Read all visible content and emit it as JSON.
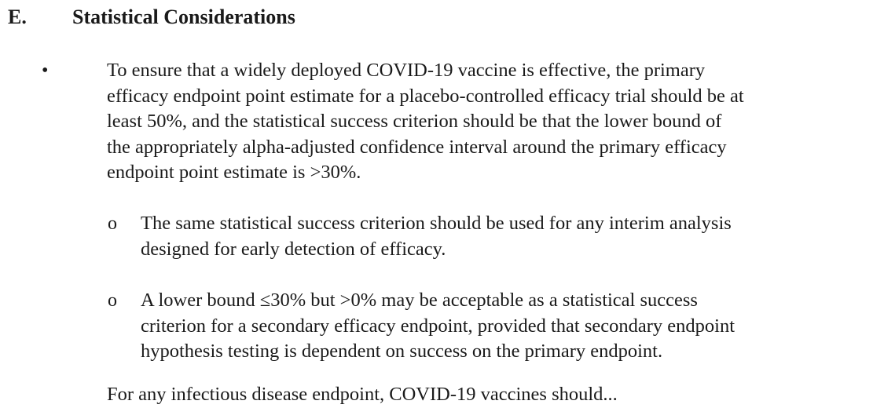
{
  "section": {
    "letter": "E.",
    "title": "Statistical Considerations"
  },
  "bullets": [
    {
      "marker": "•",
      "lines": [
        "To ensure that a widely deployed COVID-19 vaccine is effective, the primary",
        "efficacy endpoint point estimate for a placebo-controlled efficacy trial should be at",
        "least 50%, and the statistical success criterion should be that the lower bound of",
        "the appropriately alpha-adjusted confidence interval around the primary efficacy",
        "endpoint point estimate is >30%."
      ],
      "sub_items": [
        {
          "marker": "o",
          "lines": [
            "The same statistical success criterion should be used for any interim analysis",
            "designed for early detection of efficacy."
          ]
        },
        {
          "marker": "o",
          "lines": [
            "A lower bound ≤30% but >0% may be acceptable as a statistical success",
            "criterion for a secondary efficacy endpoint, provided that secondary endpoint",
            "hypothesis testing is dependent on success on the primary endpoint."
          ]
        }
      ]
    }
  ],
  "cut_off_line": "For any infectious disease endpoint, COVID-19 vaccines should...",
  "colors": {
    "text": "#1a1a1a",
    "background": "#ffffff"
  }
}
